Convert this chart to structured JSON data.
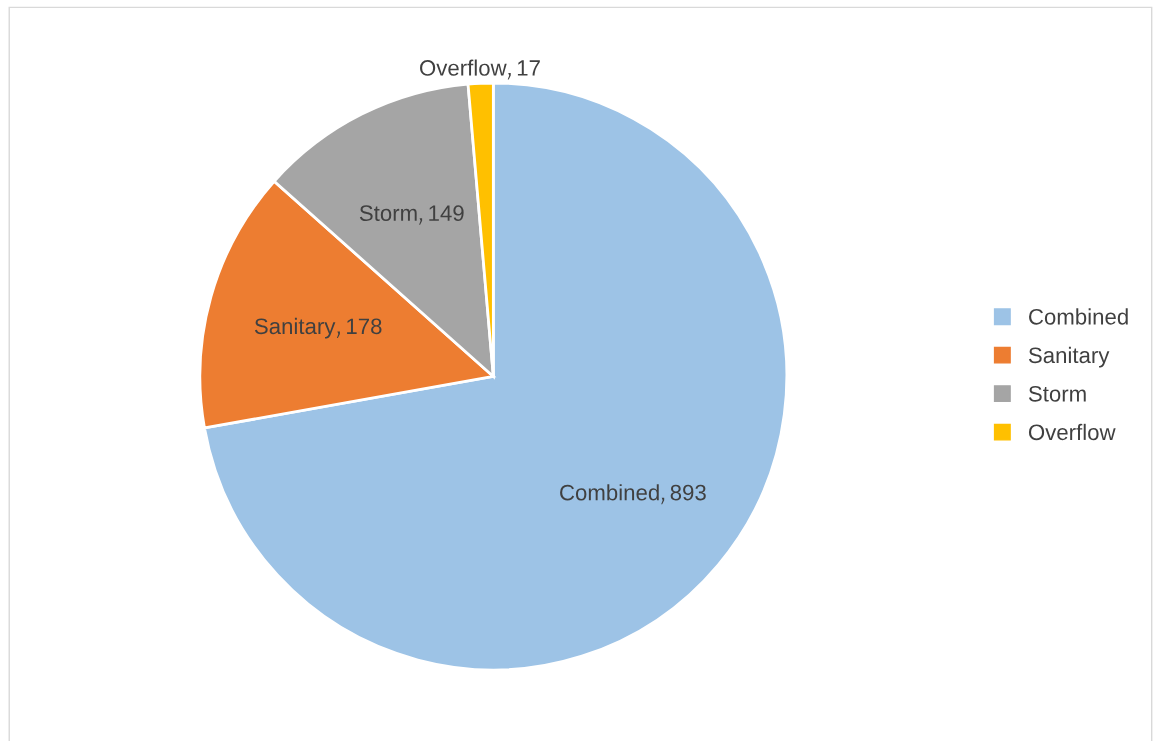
{
  "chart_data": {
    "type": "pie",
    "categories": [
      "Combined",
      "Sanitary",
      "Storm",
      "Overflow"
    ],
    "values": [
      893,
      178,
      149,
      17
    ],
    "colors": [
      "#9dc3e6",
      "#ed7d31",
      "#a5a5a5",
      "#ffc000"
    ],
    "data_labels": true,
    "legend": "right"
  }
}
